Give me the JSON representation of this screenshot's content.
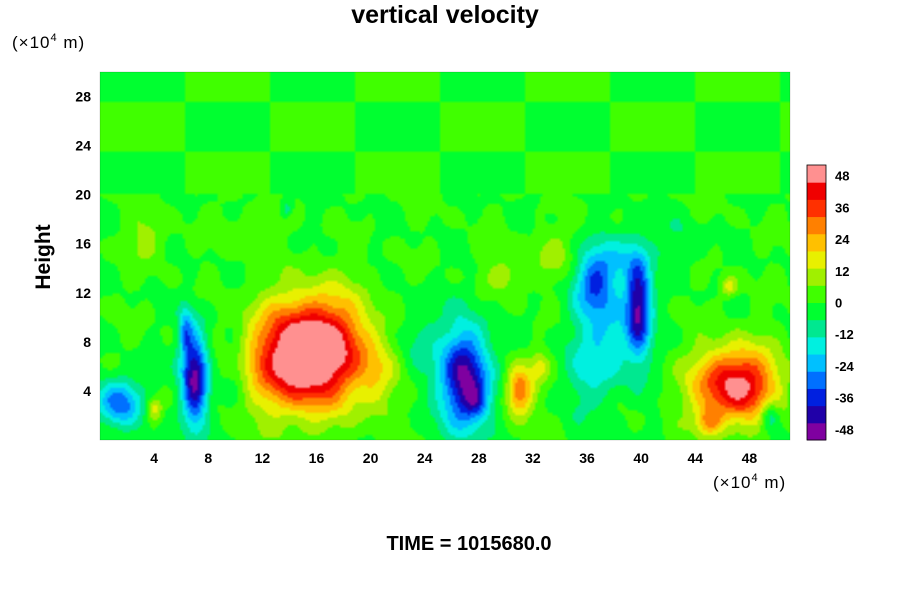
{
  "chart_data": {
    "type": "heatmap",
    "title": "vertical velocity",
    "ylabel": "Height",
    "x_unit": {
      "base": "(×10",
      "exp": "4",
      "tail": " m)"
    },
    "y_unit": {
      "base": "(×10",
      "exp": "4",
      "tail": " m)"
    },
    "footer": "TIME = 1015680.0",
    "xlim": [
      0,
      51
    ],
    "ylim": [
      0,
      30
    ],
    "x_ticks": [
      "4",
      "8",
      "12",
      "16",
      "20",
      "24",
      "28",
      "32",
      "36",
      "40",
      "44",
      "48"
    ],
    "x_tick_values": [
      4,
      8,
      12,
      16,
      20,
      24,
      28,
      32,
      36,
      40,
      44,
      48
    ],
    "y_ticks": [
      "4",
      "8",
      "12",
      "16",
      "20",
      "24",
      "28"
    ],
    "y_tick_values": [
      4,
      8,
      12,
      16,
      20,
      24,
      28
    ],
    "colorbar": {
      "range": [
        -52,
        52
      ],
      "labels": [
        "48",
        "36",
        "24",
        "12",
        "0",
        "-12",
        "-24",
        "-36",
        "-48"
      ],
      "values": [
        48,
        36,
        24,
        12,
        0,
        -12,
        -24,
        -36,
        -48
      ],
      "colors": [
        "#7f00a0",
        "#2000a8",
        "#0020e0",
        "#0070ff",
        "#00c0ff",
        "#00f0e0",
        "#00e890",
        "#00ff30",
        "#40ff00",
        "#a0f000",
        "#e8f000",
        "#ffc000",
        "#ff8000",
        "#ff3000",
        "#f00000",
        "#ff9090"
      ]
    },
    "features": [
      {
        "x": 1.5,
        "y": 3.0,
        "rx": 1.6,
        "ry": 2.0,
        "w": -32
      },
      {
        "x": 7.0,
        "y": 5.0,
        "rx": 1.0,
        "ry": 4.0,
        "w": -50
      },
      {
        "x": 6.3,
        "y": 9.0,
        "rx": 0.5,
        "ry": 2.0,
        "w": -20
      },
      {
        "x": 4.0,
        "y": 2.5,
        "rx": 0.6,
        "ry": 1.0,
        "w": 20
      },
      {
        "x": 15.0,
        "y": 6.5,
        "rx": 4.0,
        "ry": 4.2,
        "w": 52
      },
      {
        "x": 16.5,
        "y": 8.5,
        "rx": 3.6,
        "ry": 4.0,
        "w": 22
      },
      {
        "x": 27.0,
        "y": 5.0,
        "rx": 1.8,
        "ry": 4.2,
        "w": -48
      },
      {
        "x": 27.8,
        "y": 3.2,
        "rx": 0.9,
        "ry": 1.3,
        "w": -15
      },
      {
        "x": 31.0,
        "y": 4.0,
        "rx": 1.0,
        "ry": 2.0,
        "w": 35
      },
      {
        "x": 32.5,
        "y": 6.0,
        "rx": 0.7,
        "ry": 1.2,
        "w": 15
      },
      {
        "x": 37.5,
        "y": 9.0,
        "rx": 2.5,
        "ry": 4.5,
        "w": -18
      },
      {
        "x": 36.5,
        "y": 13.0,
        "rx": 1.5,
        "ry": 2.5,
        "w": -25
      },
      {
        "x": 39.8,
        "y": 11.0,
        "rx": 0.9,
        "ry": 4.0,
        "w": -42
      },
      {
        "x": 38.5,
        "y": 15.0,
        "rx": 1.8,
        "ry": 2.2,
        "w": -12
      },
      {
        "x": 36.0,
        "y": 5.0,
        "rx": 2.0,
        "ry": 3.0,
        "w": -8
      },
      {
        "x": 47.0,
        "y": 4.5,
        "rx": 3.0,
        "ry": 3.0,
        "w": 50
      },
      {
        "x": 46.5,
        "y": 12.5,
        "rx": 0.6,
        "ry": 0.8,
        "w": 18
      },
      {
        "x": 3.5,
        "y": 16.5,
        "rx": 1.5,
        "ry": 2.0,
        "w": 9
      },
      {
        "x": 10.0,
        "y": 6.0,
        "rx": 1.0,
        "ry": 3.0,
        "w": -8
      },
      {
        "x": 20.5,
        "y": 5.0,
        "rx": 1.4,
        "ry": 3.0,
        "w": 12
      },
      {
        "x": 23.5,
        "y": 8.0,
        "rx": 1.5,
        "ry": 3.5,
        "w": -10
      },
      {
        "x": 30.0,
        "y": 13.5,
        "rx": 1.5,
        "ry": 1.5,
        "w": 10
      },
      {
        "x": 33.5,
        "y": 15.0,
        "rx": 1.8,
        "ry": 2.2,
        "w": 8
      },
      {
        "x": 43.0,
        "y": 16.0,
        "rx": 2.0,
        "ry": 2.0,
        "w": -6
      },
      {
        "x": 11.0,
        "y": 17.0,
        "rx": 2.0,
        "ry": 1.8,
        "w": 6
      },
      {
        "x": 13.8,
        "y": 19.0,
        "rx": 0.4,
        "ry": 0.7,
        "w": -20
      },
      {
        "x": 49.5,
        "y": 2.0,
        "rx": 0.7,
        "ry": 1.2,
        "w": -20
      },
      {
        "x": 45.0,
        "y": 1.5,
        "rx": 1.0,
        "ry": 1.2,
        "w": 20
      }
    ]
  }
}
